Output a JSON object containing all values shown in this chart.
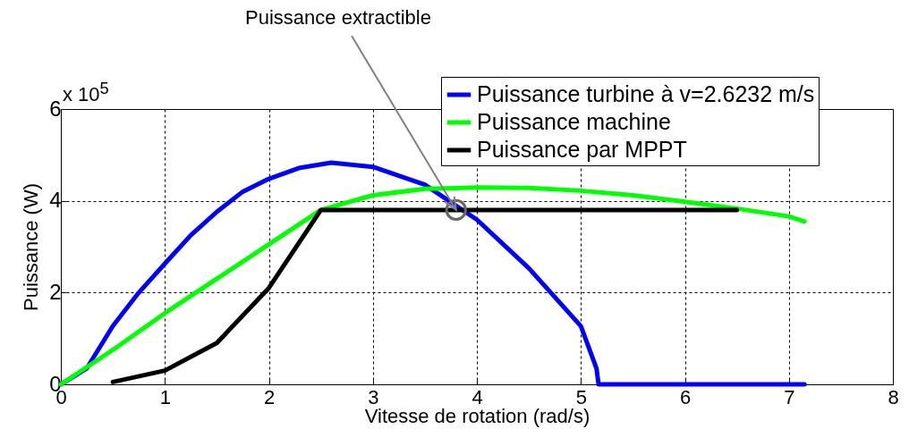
{
  "chart_data": {
    "type": "line",
    "xlabel": "Vitesse de rotation (rad/s)",
    "ylabel": "Puissance (W)",
    "xlim": [
      0,
      8
    ],
    "xticks": [
      0,
      1,
      2,
      3,
      4,
      5,
      6,
      7,
      8
    ],
    "ylim": [
      0,
      6
    ],
    "yticks": [
      0,
      2,
      4,
      6
    ],
    "grid": true,
    "legend": "top right",
    "annotations": [
      "x 10$^{5}$",
      {
        "text": "Puissance extractible",
        "x": 3.8,
        "y": 3.8
      }
    ],
    "series": [
      {
        "name": "Puissance turbine à v=2.6232 m/s",
        "color": "#0000ff",
        "x": [
          0,
          0.25,
          0.5,
          0.75,
          1,
          1.25,
          1.5,
          1.75,
          2,
          2.3,
          2.6,
          3,
          3.5,
          4,
          4.5,
          5,
          5.15,
          5.17,
          7.15
        ],
        "values": [
          0,
          0.35,
          1.27,
          2.0,
          2.63,
          3.25,
          3.76,
          4.2,
          4.48,
          4.72,
          4.83,
          4.74,
          4.35,
          3.59,
          2.53,
          1.27,
          0.35,
          0,
          0
        ]
      },
      {
        "name": "Puissance machine",
        "color": "#00ff00",
        "x": [
          0,
          0.5,
          1,
          1.5,
          2,
          2.5,
          3,
          3.5,
          4,
          4.5,
          5,
          5.5,
          6,
          6.5,
          7,
          7.15
        ],
        "values": [
          0,
          0.75,
          1.55,
          2.3,
          3.05,
          3.8,
          4.12,
          4.26,
          4.29,
          4.28,
          4.22,
          4.12,
          3.98,
          3.83,
          3.66,
          3.55
        ]
      },
      {
        "name": "Puissance par MPPT",
        "color": "#000000",
        "x": [
          0.5,
          1,
          1.5,
          2,
          2.5,
          6.5
        ],
        "values": [
          0.05,
          0.3,
          0.9,
          2.1,
          3.8,
          3.8
        ]
      }
    ]
  }
}
